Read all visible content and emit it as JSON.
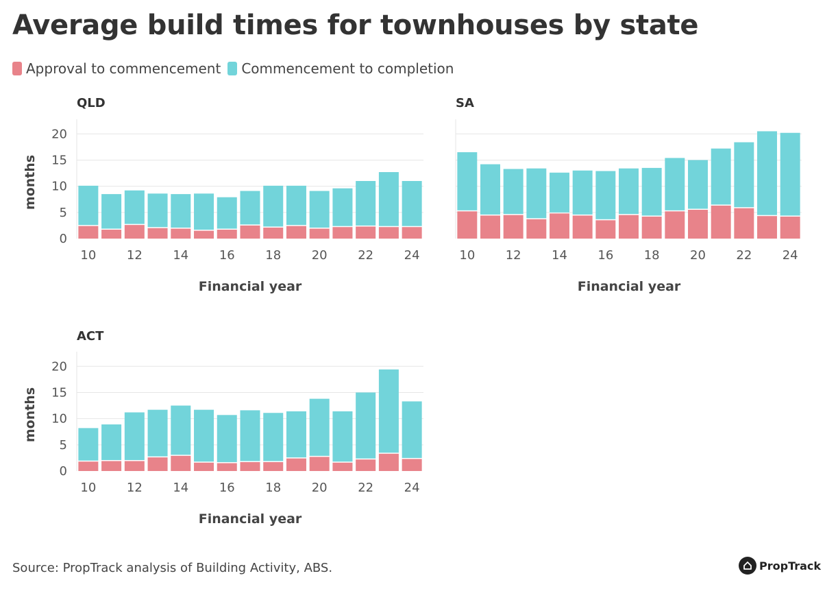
{
  "title": "Average build times for townhouses by state",
  "legend": {
    "approval_label": "Approval to commencement",
    "commencement_label": "Commencement to completion"
  },
  "colors": {
    "approval": "#e8838a",
    "commencement": "#72d4da",
    "grid": "#e6e6e6",
    "text": "#333333"
  },
  "footer": {
    "source": "Source: PropTrack analysis of Building Activity, ABS.",
    "brand": "PropTrack"
  },
  "chart_data": [
    {
      "type": "bar",
      "stacked": true,
      "title": "QLD",
      "xlabel": "Financial year",
      "ylabel": "months",
      "ylim": [
        0,
        22
      ],
      "yticks": [
        0,
        5,
        10,
        15,
        20
      ],
      "x": [
        10,
        11,
        12,
        13,
        14,
        15,
        16,
        17,
        18,
        19,
        20,
        21,
        22,
        23,
        24
      ],
      "xticks": [
        10,
        12,
        14,
        16,
        18,
        20,
        22,
        24
      ],
      "series": [
        {
          "name": "Approval to commencement",
          "values": [
            2.4,
            1.7,
            2.6,
            2.0,
            1.9,
            1.5,
            1.7,
            2.5,
            2.1,
            2.4,
            1.9,
            2.2,
            2.3,
            2.2,
            2.2
          ]
        },
        {
          "name": "Commencement to completion",
          "values": [
            7.7,
            6.8,
            6.6,
            6.6,
            6.6,
            7.1,
            6.2,
            6.6,
            8.0,
            7.7,
            7.2,
            7.4,
            8.7,
            10.5,
            8.8
          ]
        }
      ]
    },
    {
      "type": "bar",
      "stacked": true,
      "title": "SA",
      "xlabel": "Financial year",
      "ylabel": "",
      "ylim": [
        0,
        22
      ],
      "yticks": [
        0,
        5,
        10,
        15,
        20
      ],
      "show_yticks": false,
      "x": [
        10,
        11,
        12,
        13,
        14,
        15,
        16,
        17,
        18,
        19,
        20,
        21,
        22,
        23,
        24
      ],
      "xticks": [
        10,
        12,
        14,
        16,
        18,
        20,
        22,
        24
      ],
      "series": [
        {
          "name": "Approval to commencement",
          "values": [
            5.2,
            4.4,
            4.5,
            3.7,
            4.8,
            4.4,
            3.5,
            4.5,
            4.2,
            5.2,
            5.5,
            6.3,
            5.8,
            4.3,
            4.2
          ]
        },
        {
          "name": "Commencement to completion",
          "values": [
            11.3,
            9.8,
            8.8,
            9.7,
            7.8,
            8.6,
            9.4,
            8.9,
            9.3,
            10.2,
            9.5,
            10.9,
            12.6,
            16.2,
            16.0
          ]
        }
      ]
    },
    {
      "type": "bar",
      "stacked": true,
      "title": "ACT",
      "xlabel": "Financial year",
      "ylabel": "months",
      "ylim": [
        0,
        22
      ],
      "yticks": [
        0,
        5,
        10,
        15,
        20
      ],
      "x": [
        10,
        11,
        12,
        13,
        14,
        15,
        16,
        17,
        18,
        19,
        20,
        21,
        22,
        23,
        24
      ],
      "xticks": [
        10,
        12,
        14,
        16,
        18,
        20,
        22,
        24
      ],
      "series": [
        {
          "name": "Approval to commencement",
          "values": [
            1.8,
            1.9,
            1.9,
            2.6,
            2.9,
            1.6,
            1.5,
            1.7,
            1.7,
            2.4,
            2.7,
            1.6,
            2.2,
            3.3,
            2.3
          ]
        },
        {
          "name": "Commencement to completion",
          "values": [
            6.4,
            7.0,
            9.3,
            9.1,
            9.6,
            10.1,
            9.2,
            9.9,
            9.4,
            9.0,
            11.1,
            9.8,
            12.8,
            16.1,
            11.0
          ]
        }
      ]
    }
  ]
}
